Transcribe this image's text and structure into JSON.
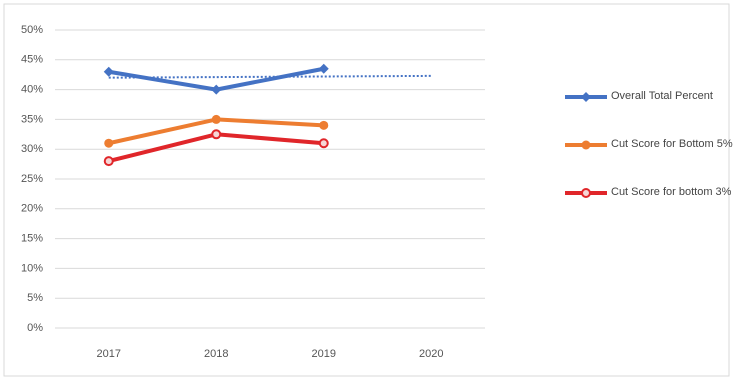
{
  "chart_data": {
    "type": "line",
    "categories": [
      "2017",
      "2018",
      "2019",
      "2020"
    ],
    "series": [
      {
        "name": "Overall Total Percent",
        "color": "#4472c4",
        "marker": "diamond",
        "values": [
          43,
          40,
          43.5,
          null
        ]
      },
      {
        "name": "Cut Score for Bottom 5%",
        "color": "#ed7d31",
        "marker": "circle",
        "values": [
          31,
          35,
          34,
          null
        ]
      },
      {
        "name": "Cut Score for bottom 3%",
        "color": "#e0262a",
        "marker": "hollow-circle",
        "values": [
          28,
          32.5,
          31,
          null
        ]
      },
      {
        "color": "#4472c4",
        "dash": "dotted",
        "values": [
          42,
          42.1,
          42.2,
          42.3
        ]
      }
    ],
    "ylim": [
      0,
      50
    ],
    "yticks": [
      {
        "value": 0,
        "label": "0%"
      },
      {
        "value": 5,
        "label": "5%"
      },
      {
        "value": 10,
        "label": "10%"
      },
      {
        "value": 15,
        "label": "15%"
      },
      {
        "value": 20,
        "label": "20%"
      },
      {
        "value": 25,
        "label": "25%"
      },
      {
        "value": 30,
        "label": "30%"
      },
      {
        "value": 35,
        "label": "35%"
      },
      {
        "value": 40,
        "label": "40%"
      },
      {
        "value": 45,
        "label": "45%"
      },
      {
        "value": 50,
        "label": "50%"
      }
    ],
    "grid": true
  }
}
